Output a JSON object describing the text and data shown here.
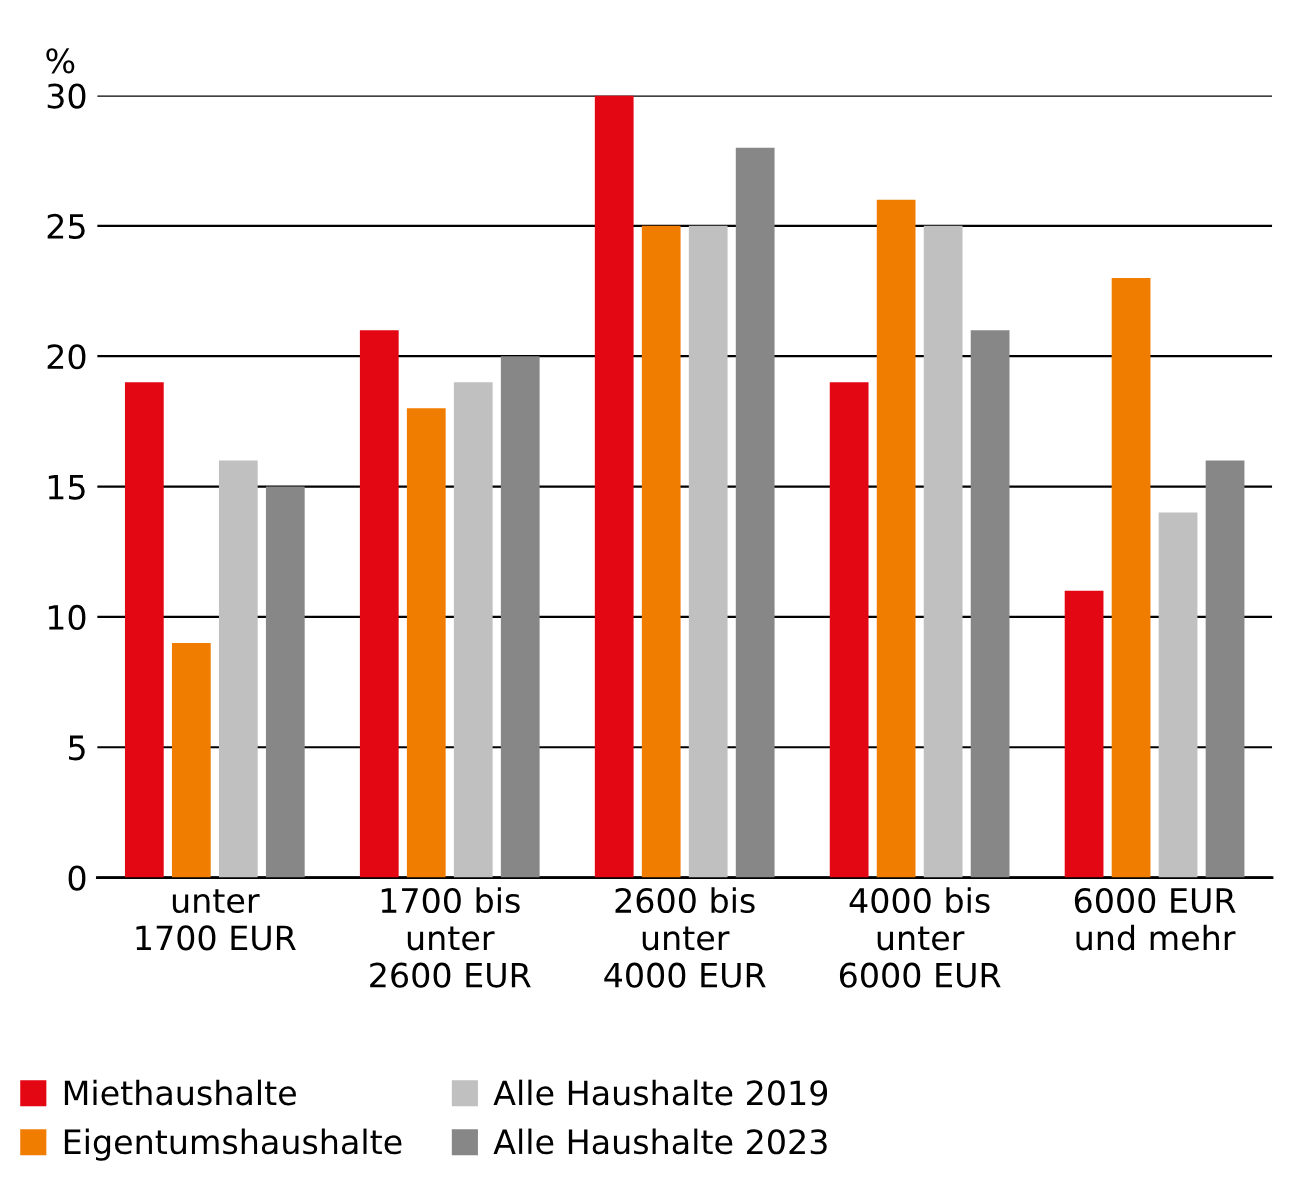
{
  "chart_data": {
    "type": "bar",
    "ylabel": "%",
    "categories": [
      "unter\n1700 EUR",
      "1700 bis\nunter\n2600 EUR",
      "2600 bis\nunter\n4000 EUR",
      "4000 bis\nunter\n6000 EUR",
      "6000 EUR\nund mehr"
    ],
    "series": [
      {
        "name": "Miethaushalte",
        "color": "#e30613",
        "values": [
          19,
          21,
          30,
          19,
          11
        ]
      },
      {
        "name": "Eigentumshaushalte",
        "color": "#f07d00",
        "values": [
          9,
          18,
          25,
          26,
          23
        ]
      },
      {
        "name": "Alle Haushalte 2019",
        "color": "#c0c0c0",
        "values": [
          16,
          19,
          25,
          25,
          14
        ]
      },
      {
        "name": "Alle Haushalte 2023",
        "color": "#878787",
        "values": [
          15,
          20,
          28,
          21,
          16
        ]
      }
    ],
    "ylim": [
      0,
      30
    ],
    "yticks": [
      0,
      5,
      10,
      15,
      20,
      25,
      30
    ],
    "grid": "y",
    "legend": "bottom"
  }
}
